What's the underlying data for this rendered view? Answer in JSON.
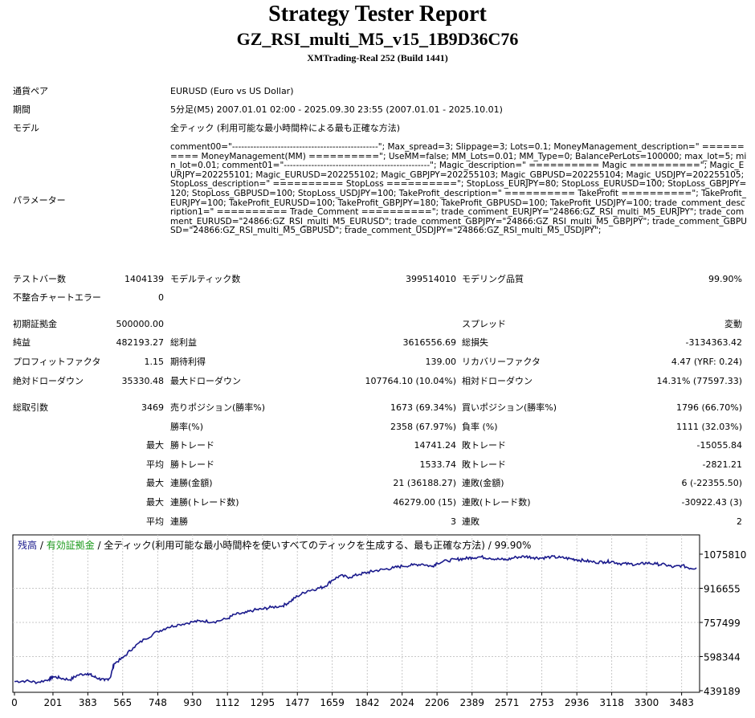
{
  "header": {
    "title": "Strategy Tester Report",
    "ea_name": "GZ_RSI_multi_M5_v15_1B9D36C76",
    "server": "XMTrading-Real 252 (Build 1441)"
  },
  "info": {
    "symbol_label": "通貨ペア",
    "symbol_value": "EURUSD (Euro vs US Dollar)",
    "period_label": "期間",
    "period_value": "5分足(M5) 2007.01.01 02:00 - 2025.09.30 23:55 (2007.01.01 - 2025.10.01)",
    "model_label": "モデル",
    "model_value": "全ティック (利用可能な最小時間枠による最も正確な方法)",
    "params_label": "パラメーター",
    "params_value": "comment00=\"------------------------------------------------\"; Max_spread=3; Slippage=3; Lots=0.1; MoneyManagement_description=\" ========== MoneyManagement(MM) ==========\"; UseMM=false; MM_Lots=0.01; MM_Type=0; BalancePerLots=100000; max_lot=5; min_lot=0.01; comment01=\"------------------------------------------------\"; Magic_description=\" ========== Magic ==========\"; Magic_EURJPY=202255101; Magic_EURUSD=202255102; Magic_GBPJPY=202255103; Magic_GBPUSD=202255104; Magic_USDJPY=202255105; StopLoss_description=\" ========== StopLoss ==========\"; StopLoss_EURJPY=80; StopLoss_EURUSD=100; StopLoss_GBPJPY=120; StopLoss_GBPUSD=100; StopLoss_USDJPY=100; TakeProfit_description=\" ========== TakeProfit ==========\"; TakeProfit_EURJPY=100; TakeProfit_EURUSD=100; TakeProfit_GBPJPY=180; TakeProfit_GBPUSD=100; TakeProfit_USDJPY=100; trade_comment_description1=\" ========== Trade_Comment ==========\"; trade_comment_EURJPY=\"24866:GZ_RSI_multi_M5_EURJPY\"; trade_comment_EURUSD=\"24866:GZ_RSI_multi_M5_EURUSD\"; trade_comment_GBPJPY=\"24866:GZ_RSI_multi_M5_GBPJPY\"; trade_comment_GBPUSD=\"24866:GZ_RSI_multi_M5_GBPUSD\"; trade_comment_USDJPY=\"24866:GZ_RSI_multi_M5_USDJPY\";"
  },
  "stats": {
    "bars_label": "テストバー数",
    "bars_value": "1404139",
    "ticks_label": "モデルティック数",
    "ticks_value": "399514010",
    "quality_label": "モデリング品質",
    "quality_value": "99.90%",
    "mismatch_label": "不整合チャートエラー",
    "mismatch_value": "0",
    "deposit_label": "初期証拠金",
    "deposit_value": "500000.00",
    "spread_label": "スプレッド",
    "spread_value": "変動",
    "netprofit_label": "純益",
    "netprofit_value": "482193.27",
    "grossprofit_label": "総利益",
    "grossprofit_value": "3616556.69",
    "grossloss_label": "総損失",
    "grossloss_value": "-3134363.42",
    "pf_label": "プロフィットファクタ",
    "pf_value": "1.15",
    "expected_label": "期待利得",
    "expected_value": "139.00",
    "recovery_label": "リカバリーファクタ",
    "recovery_value": "4.47 (YRF: 0.24)",
    "absdd_label": "絶対ドローダウン",
    "absdd_value": "35330.48",
    "maxdd_label": "最大ドローダウン",
    "maxdd_value": "107764.10 (10.04%)",
    "reldd_label": "相対ドローダウン",
    "reldd_value": "14.31% (77597.33)",
    "trades_label": "総取引数",
    "trades_value": "3469",
    "short_label": "売りポジション(勝率%)",
    "short_value": "1673 (69.34%)",
    "long_label": "買いポジション(勝率%)",
    "long_value": "1796 (66.70%)",
    "winrate_label": "勝率(%)",
    "winrate_value": "2358 (67.97%)",
    "lossrate_label": "負率 (%)",
    "lossrate_value": "1111 (32.03%)",
    "max": "最大",
    "avg": "平均",
    "largest_win_label": "勝トレード",
    "largest_win_value": "14741.24",
    "largest_loss_label": "敗トレード",
    "largest_loss_value": "-15055.84",
    "avg_win_label": "勝トレード",
    "avg_win_value": "1533.74",
    "avg_loss_label": "敗トレード",
    "avg_loss_value": "-2821.21",
    "cons_wins_money_label": "連勝(金額)",
    "cons_wins_money_value": "21 (36188.27)",
    "cons_losses_money_label": "連敗(金額)",
    "cons_losses_money_value": "6 (-22355.50)",
    "cons_wins_count_label": "連勝(トレード数)",
    "cons_wins_count_value": "46279.00 (15)",
    "cons_losses_count_label": "連敗(トレード数)",
    "cons_losses_count_value": "-30922.43 (3)",
    "avg_cons_wins_label": "連勝",
    "avg_cons_wins_value": "3",
    "avg_cons_losses_label": "連敗",
    "avg_cons_losses_value": "2"
  },
  "chart_data": {
    "type": "line",
    "legend": {
      "balance": "残高",
      "sep1": " / ",
      "equity": "有効証拠金",
      "sep2": " / ",
      "rest": "全ティック(利用可能な最小時間枠を使いすべてのティックを生成する、最も正確な方法) / 99.90%"
    },
    "colors": {
      "balance": "#1a1a8c",
      "equity": "#1a9a1a"
    },
    "x_ticks": [
      "0",
      "201",
      "383",
      "565",
      "748",
      "930",
      "1112",
      "1295",
      "1477",
      "1659",
      "1842",
      "2024",
      "2206",
      "2389",
      "2571",
      "2753",
      "2936",
      "3118",
      "3300",
      "3483"
    ],
    "y_ticks": [
      "1075810",
      "916655",
      "757499",
      "598344",
      "439189"
    ],
    "ylim": [
      439189,
      1075810
    ],
    "xlim": [
      0,
      3560
    ],
    "grid": true,
    "series": [
      {
        "x": [
          0,
          60,
          120,
          180,
          201,
          240,
          290,
          330,
          383,
          410,
          440,
          470,
          500,
          520,
          565,
          620,
          680,
          748,
          800,
          860,
          930,
          980,
          1040,
          1112,
          1150,
          1200,
          1250,
          1295,
          1340,
          1400,
          1440,
          1477,
          1530,
          1580,
          1620,
          1659,
          1700,
          1750,
          1800,
          1842,
          1880,
          1930,
          1980,
          2024,
          2080,
          2130,
          2180,
          2206,
          2260,
          2310,
          2350,
          2389,
          2430,
          2480,
          2530,
          2571,
          2620,
          2670,
          2710,
          2753,
          2800,
          2850,
          2900,
          2936,
          2980,
          3030,
          3080,
          3118,
          3160,
          3210,
          3260,
          3300,
          3350,
          3400,
          3440,
          3483,
          3530,
          3560
        ],
        "y": [
          482000,
          485000,
          478000,
          492000,
          505000,
          498000,
          490000,
          512000,
          520000,
          506000,
          496000,
          487000,
          500000,
          565000,
          592000,
          640000,
          680000,
          715000,
          735000,
          748000,
          760000,
          765000,
          760000,
          775000,
          795000,
          800000,
          815000,
          820000,
          828000,
          835000,
          855000,
          880000,
          905000,
          915000,
          925000,
          955000,
          975000,
          968000,
          982000,
          990000,
          998000,
          1005000,
          1012000,
          1020000,
          1025000,
          1030000,
          1018000,
          1035000,
          1045000,
          1052000,
          1055000,
          1060000,
          1063000,
          1058000,
          1052000,
          1050000,
          1062000,
          1065000,
          1060000,
          1058000,
          1063000,
          1060000,
          1055000,
          1050000,
          1045000,
          1038000,
          1040000,
          1042000,
          1032000,
          1030000,
          1028000,
          1035000,
          1030000,
          1026000,
          1015000,
          1023000,
          1010000,
          1012000
        ]
      }
    ]
  }
}
